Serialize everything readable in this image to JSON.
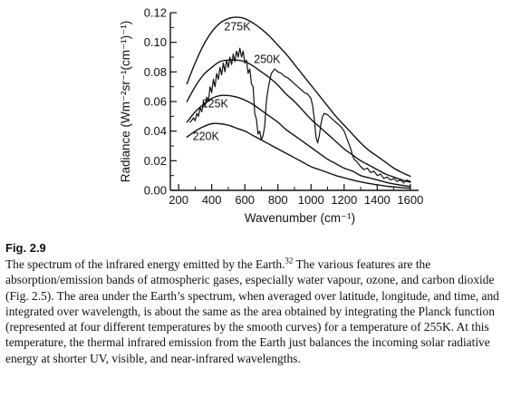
{
  "chart_data": {
    "type": "line",
    "xlabel": "Wavenumber (cm⁻¹)",
    "ylabel": "Radiance (Wm⁻²sr⁻¹(cm⁻¹)⁻¹)",
    "xlim": [
      150,
      1650
    ],
    "ylim": [
      0,
      0.12
    ],
    "x_ticks": [
      200,
      400,
      600,
      800,
      1000,
      1200,
      1400,
      1600
    ],
    "x_tick_labels": [
      "200",
      "400",
      "600",
      "800",
      "1000",
      "1200",
      "1400",
      "1600"
    ],
    "y_ticks": [
      0,
      0.02,
      0.04,
      0.06,
      0.08,
      0.1,
      0.12
    ],
    "y_tick_labels": [
      "0.00",
      "0.02",
      "0.04",
      "0.06",
      "0.08",
      "0.10",
      "0.12"
    ],
    "grid": false,
    "series": [
      {
        "name": "275K",
        "x": [
          250,
          300,
          350,
          400,
          450,
          500,
          550,
          600,
          650,
          700,
          750,
          800,
          850,
          900,
          950,
          1000,
          1050,
          1100,
          1150,
          1200,
          1250,
          1300,
          1350,
          1400,
          1450,
          1500,
          1550,
          1600
        ],
        "y": [
          0.072,
          0.086,
          0.098,
          0.107,
          0.113,
          0.116,
          0.117,
          0.116,
          0.113,
          0.109,
          0.104,
          0.098,
          0.092,
          0.085,
          0.078,
          0.071,
          0.064,
          0.057,
          0.05,
          0.044,
          0.038,
          0.032,
          0.027,
          0.023,
          0.019,
          0.015,
          0.012,
          0.0095
        ]
      },
      {
        "name": "250K",
        "x": [
          250,
          300,
          350,
          400,
          450,
          500,
          550,
          600,
          650,
          700,
          750,
          800,
          850,
          900,
          950,
          1000,
          1050,
          1100,
          1150,
          1200,
          1250,
          1300,
          1350,
          1400,
          1450,
          1500,
          1550,
          1600
        ],
        "y": [
          0.06,
          0.07,
          0.078,
          0.083,
          0.087,
          0.088,
          0.088,
          0.087,
          0.084,
          0.08,
          0.076,
          0.071,
          0.065,
          0.06,
          0.054,
          0.048,
          0.043,
          0.038,
          0.033,
          0.028,
          0.024,
          0.02,
          0.017,
          0.014,
          0.011,
          0.009,
          0.007,
          0.0055
        ]
      },
      {
        "name": "225K",
        "x": [
          250,
          300,
          350,
          400,
          450,
          500,
          550,
          600,
          650,
          700,
          750,
          800,
          850,
          900,
          950,
          1000,
          1050,
          1100,
          1150,
          1200,
          1250,
          1300,
          1350,
          1400,
          1450,
          1500,
          1550,
          1600
        ],
        "y": [
          0.046,
          0.053,
          0.058,
          0.062,
          0.064,
          0.064,
          0.063,
          0.061,
          0.058,
          0.054,
          0.05,
          0.046,
          0.041,
          0.037,
          0.033,
          0.029,
          0.025,
          0.021,
          0.018,
          0.015,
          0.013,
          0.01,
          0.0085,
          0.007,
          0.0055,
          0.0043,
          0.0034,
          0.0026
        ]
      },
      {
        "name": "220K",
        "x": [
          250,
          300,
          350,
          400,
          450,
          500,
          550,
          600,
          650,
          700,
          750,
          800,
          850,
          900,
          950,
          1000,
          1050,
          1100,
          1150,
          1200,
          1250,
          1300,
          1350,
          1400,
          1450,
          1500,
          1550,
          1600
        ],
        "y": [
          0.036,
          0.04,
          0.043,
          0.045,
          0.045,
          0.044,
          0.042,
          0.04,
          0.037,
          0.034,
          0.031,
          0.028,
          0.025,
          0.022,
          0.019,
          0.016,
          0.014,
          0.012,
          0.01,
          0.0085,
          0.007,
          0.0057,
          0.0046,
          0.0037,
          0.0029,
          0.0023,
          0.0018,
          0.0014
        ]
      },
      {
        "name": "",
        "x": [
          270,
          290,
          300,
          310,
          320,
          330,
          340,
          350,
          360,
          370,
          380,
          390,
          400,
          410,
          420,
          430,
          440,
          450,
          460,
          470,
          480,
          490,
          500,
          510,
          520,
          530,
          540,
          550,
          560,
          570,
          580,
          590,
          600,
          610,
          620,
          630,
          640,
          650,
          660,
          670,
          680,
          690,
          700,
          710,
          720,
          730,
          740,
          750,
          760,
          780,
          800,
          820,
          840,
          860,
          880,
          900,
          920,
          940,
          960,
          980,
          1000,
          1010,
          1020,
          1030,
          1040,
          1050,
          1060,
          1070,
          1080,
          1100,
          1120,
          1140,
          1160,
          1180,
          1200,
          1220,
          1240,
          1250,
          1260,
          1280,
          1300,
          1320,
          1340,
          1360,
          1380,
          1400,
          1420,
          1440,
          1460,
          1480,
          1500,
          1520,
          1540,
          1560,
          1580,
          1600
        ],
        "y": [
          0.046,
          0.049,
          0.047,
          0.052,
          0.05,
          0.056,
          0.053,
          0.06,
          0.057,
          0.063,
          0.06,
          0.07,
          0.066,
          0.075,
          0.07,
          0.079,
          0.075,
          0.083,
          0.078,
          0.086,
          0.08,
          0.088,
          0.083,
          0.09,
          0.085,
          0.092,
          0.087,
          0.094,
          0.09,
          0.096,
          0.09,
          0.094,
          0.086,
          0.088,
          0.079,
          0.082,
          0.072,
          0.07,
          0.052,
          0.048,
          0.038,
          0.04,
          0.034,
          0.037,
          0.043,
          0.06,
          0.068,
          0.074,
          0.079,
          0.082,
          0.08,
          0.079,
          0.077,
          0.076,
          0.074,
          0.072,
          0.07,
          0.068,
          0.066,
          0.065,
          0.062,
          0.057,
          0.048,
          0.036,
          0.032,
          0.037,
          0.045,
          0.05,
          0.052,
          0.051,
          0.049,
          0.047,
          0.045,
          0.043,
          0.04,
          0.034,
          0.028,
          0.024,
          0.021,
          0.019,
          0.016,
          0.014,
          0.015,
          0.012,
          0.013,
          0.01,
          0.011,
          0.008,
          0.009,
          0.007,
          0.008,
          0.006,
          0.007,
          0.005,
          0.007,
          0.006
        ]
      }
    ],
    "annotations": [
      {
        "text": "275K",
        "x": 555,
        "y": 0.108
      },
      {
        "text": "250K",
        "x": 735,
        "y": 0.086
      },
      {
        "text": "225K",
        "x": 420,
        "y": 0.056
      },
      {
        "text": "220K",
        "x": 365,
        "y": 0.034
      }
    ]
  },
  "caption": {
    "fig_label": "Fig. 2.9",
    "text_before_sup": "The spectrum of the infrared energy emitted by the Earth.",
    "sup": "32",
    "text_after_sup": " The various features are the absorption/emission bands of atmospheric gases, especially water vapour, ozone, and carbon dioxide (Fig. 2.5). The area under the Earth’s spectrum, when averaged over latitude, longitude, and time, and integrated over wavelength, is about the same as the area obtained by integrating the Planck function (represented at four different temperatures by the smooth curves) for a temperature of 255K. At this temperature, the thermal infrared emission from the Earth just balances the incoming solar radiative energy at shorter UV, visible, and near-infrared wavelengths."
  }
}
